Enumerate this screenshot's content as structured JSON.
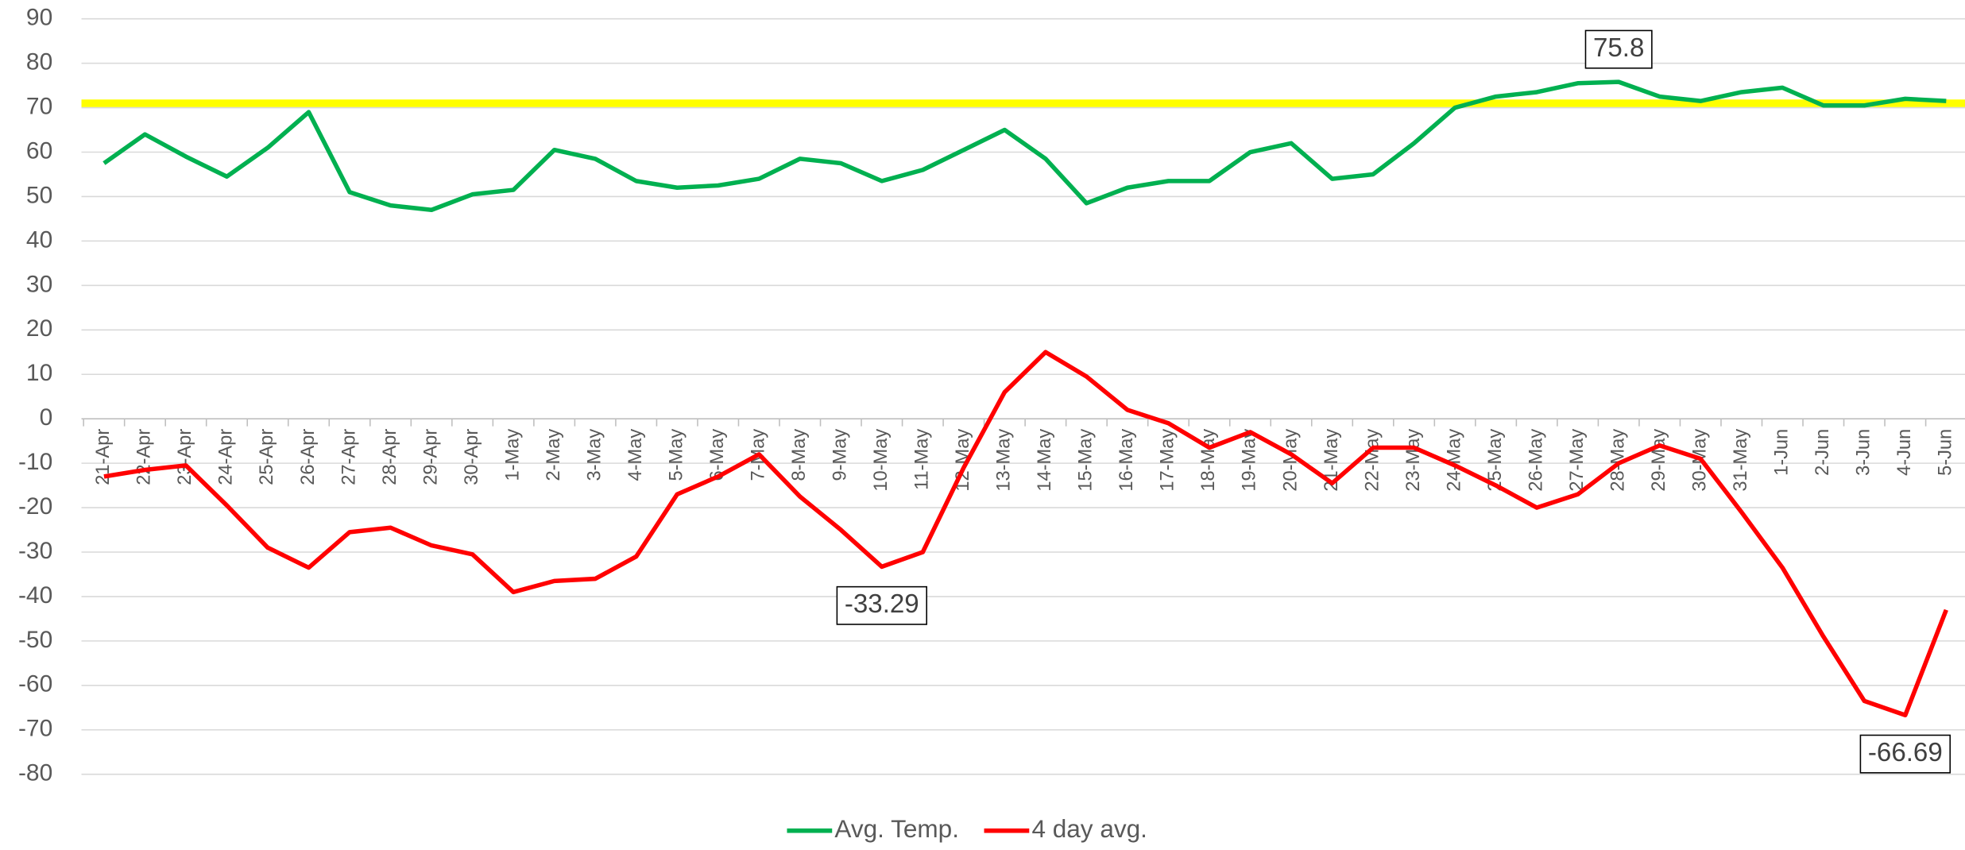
{
  "chart_data": {
    "type": "line",
    "categories": [
      "21-Apr",
      "22-Apr",
      "23-Apr",
      "24-Apr",
      "25-Apr",
      "26-Apr",
      "27-Apr",
      "28-Apr",
      "29-Apr",
      "30-Apr",
      "1-May",
      "2-May",
      "3-May",
      "4-May",
      "5-May",
      "6-May",
      "7-May",
      "8-May",
      "9-May",
      "10-May",
      "11-May",
      "12-May",
      "13-May",
      "14-May",
      "15-May",
      "16-May",
      "17-May",
      "18-May",
      "19-May",
      "20-May",
      "21-May",
      "22-May",
      "23-May",
      "24-May",
      "25-May",
      "26-May",
      "27-May",
      "28-May",
      "29-May",
      "30-May",
      "31-May",
      "1-Jun",
      "2-Jun",
      "3-Jun",
      "4-Jun",
      "5-Jun"
    ],
    "series": [
      {
        "name": "Avg. Temp.",
        "color": "#00b050",
        "values": [
          57.5,
          64,
          59,
          54.5,
          61,
          69,
          51,
          48,
          47,
          50.5,
          51.5,
          60.5,
          58.5,
          53.5,
          52,
          52.5,
          54,
          58.5,
          57.5,
          53.5,
          56,
          60.5,
          65,
          58.5,
          48.5,
          52,
          53.5,
          53.5,
          60,
          62,
          54,
          55,
          62,
          70,
          72.5,
          73.5,
          75.5,
          75.8,
          72.5,
          71.5,
          73.5,
          74.5,
          70.5,
          70.5,
          72,
          71.5
        ],
        "value_labels": [
          null,
          null,
          null,
          null,
          null,
          null,
          null,
          null,
          null,
          null,
          null,
          null,
          null,
          null,
          null,
          null,
          null,
          null,
          null,
          null,
          null,
          null,
          null,
          null,
          null,
          null,
          null,
          null,
          null,
          null,
          null,
          null,
          null,
          null,
          null,
          null,
          null,
          "75.8",
          null,
          null,
          null,
          null,
          null,
          null,
          null,
          null
        ]
      },
      {
        "name": "4 day avg.",
        "color": "#ff0000",
        "values": [
          -13,
          -11.5,
          -10.5,
          -19.5,
          -29,
          -33.5,
          -25.5,
          -24.5,
          -28.5,
          -30.5,
          -39,
          -36.5,
          -36,
          -31,
          -17,
          -13,
          -8,
          -17.5,
          -25,
          -33.29,
          -30,
          -11,
          6,
          15,
          9.5,
          2,
          -1,
          -6.5,
          -3,
          -8,
          -14.5,
          -6.5,
          -6.5,
          -10.5,
          -15,
          -20,
          -17,
          -10,
          -6,
          -9,
          -21,
          -33.5,
          -49,
          -63.5,
          -66.69,
          -43
        ],
        "value_labels": [
          null,
          null,
          null,
          null,
          null,
          null,
          null,
          null,
          null,
          null,
          null,
          null,
          null,
          null,
          null,
          null,
          null,
          null,
          null,
          "-33.29",
          null,
          null,
          null,
          null,
          null,
          null,
          null,
          null,
          null,
          null,
          null,
          null,
          null,
          null,
          null,
          null,
          null,
          null,
          null,
          null,
          null,
          null,
          null,
          null,
          "-66.69",
          null
        ]
      }
    ],
    "reference_line": {
      "value": 71,
      "color": "#ffff00"
    },
    "ylim": [
      -80,
      90
    ],
    "yticks": [
      -80,
      -70,
      -60,
      -50,
      -40,
      -30,
      -20,
      -10,
      0,
      10,
      20,
      30,
      40,
      50,
      60,
      70,
      80,
      90
    ],
    "grid": true,
    "legend": "bottom"
  }
}
